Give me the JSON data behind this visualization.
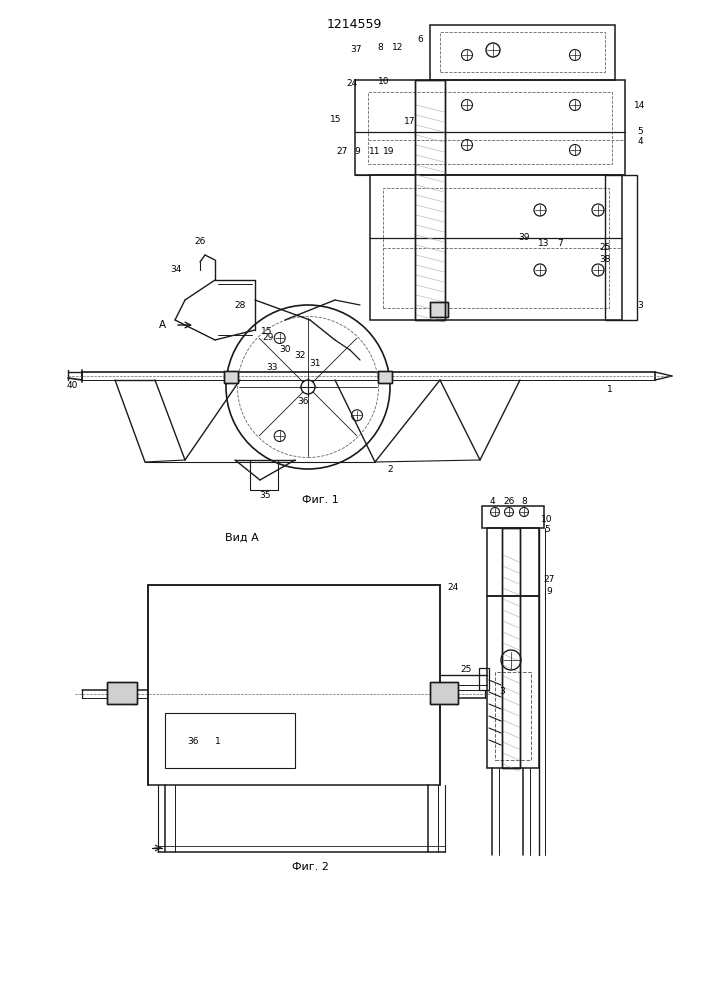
{
  "title": "1214559",
  "fig1_caption": "Фиг. 1",
  "fig2_caption": "Фиг. 2",
  "view_label": "Вид А",
  "bg_color": "#ffffff",
  "lc": "#1a1a1a",
  "dc": "#666666",
  "hc": "#aaaaaa"
}
